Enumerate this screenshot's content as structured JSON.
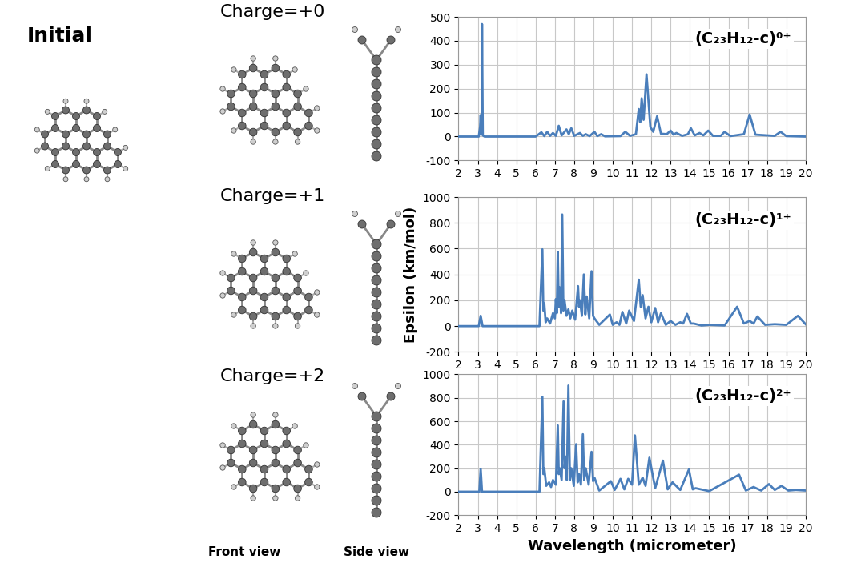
{
  "panels": {
    "initial": "Initial",
    "charges": [
      "Charge=+0",
      "Charge=+1",
      "Charge=+2"
    ],
    "views": [
      "Front view",
      "Side view"
    ]
  },
  "chart_data": [
    {
      "type": "line",
      "annotation": "(C₂₃H₁₂-c)⁰⁺",
      "color": "#4a7ebb",
      "grid": true,
      "xlim": [
        2,
        20
      ],
      "xticks": [
        2,
        3,
        4,
        5,
        6,
        7,
        8,
        9,
        10,
        11,
        12,
        13,
        14,
        15,
        16,
        17,
        18,
        19,
        20
      ],
      "ylim": [
        -100,
        500
      ],
      "yticks": [
        -100,
        0,
        100,
        200,
        300,
        400,
        500
      ],
      "x": [
        2,
        3.05,
        3.12,
        3.15,
        3.18,
        3.2,
        3.22,
        3.26,
        3.35,
        6.0,
        6.3,
        6.45,
        6.6,
        6.75,
        6.9,
        7.05,
        7.2,
        7.35,
        7.6,
        7.72,
        7.85,
        8.0,
        8.3,
        8.45,
        8.6,
        8.8,
        9.05,
        9.2,
        9.4,
        9.6,
        10.4,
        10.65,
        10.9,
        11.2,
        11.35,
        11.42,
        11.5,
        11.6,
        11.75,
        11.95,
        12.1,
        12.3,
        12.5,
        12.8,
        13.0,
        13.15,
        13.3,
        13.6,
        13.9,
        14.05,
        14.25,
        14.5,
        14.7,
        14.95,
        15.2,
        15.6,
        15.8,
        16.1,
        16.8,
        17.1,
        17.4,
        18.4,
        18.7,
        19.0,
        20
      ],
      "values": [
        0,
        0,
        40,
        90,
        10,
        60,
        470,
        5,
        0,
        0,
        18,
        2,
        20,
        3,
        15,
        3,
        45,
        5,
        30,
        10,
        35,
        3,
        15,
        3,
        10,
        2,
        20,
        2,
        10,
        1,
        2,
        20,
        3,
        10,
        115,
        60,
        160,
        70,
        260,
        40,
        20,
        85,
        12,
        10,
        25,
        8,
        15,
        3,
        10,
        35,
        5,
        15,
        5,
        25,
        3,
        3,
        20,
        2,
        10,
        92,
        8,
        3,
        20,
        2,
        0
      ]
    },
    {
      "type": "line",
      "annotation": "(C₂₃H₁₂-c)¹⁺",
      "color": "#4a7ebb",
      "grid": true,
      "ylabel": "Epsilon (km/mol)",
      "xlim": [
        2,
        20
      ],
      "xticks": [
        2,
        3,
        4,
        5,
        6,
        7,
        8,
        9,
        10,
        11,
        12,
        13,
        14,
        15,
        16,
        17,
        18,
        19,
        20
      ],
      "ylim": [
        -200,
        1000
      ],
      "yticks": [
        -200,
        0,
        200,
        400,
        600,
        800,
        1000
      ],
      "x": [
        2,
        3.05,
        3.15,
        3.25,
        6.2,
        6.35,
        6.4,
        6.45,
        6.52,
        6.6,
        6.75,
        6.9,
        7.0,
        7.05,
        7.1,
        7.15,
        7.2,
        7.25,
        7.32,
        7.38,
        7.44,
        7.5,
        7.6,
        7.7,
        7.8,
        7.9,
        8.05,
        8.2,
        8.25,
        8.3,
        8.4,
        8.5,
        8.58,
        8.65,
        8.78,
        8.9,
        8.98,
        9.05,
        9.3,
        9.85,
        10.0,
        10.2,
        10.35,
        10.5,
        10.7,
        10.85,
        11.1,
        11.35,
        11.45,
        11.55,
        11.7,
        11.85,
        12.0,
        12.2,
        12.35,
        12.5,
        12.75,
        13.0,
        13.25,
        13.5,
        13.65,
        13.85,
        14.05,
        14.2,
        14.6,
        15.0,
        15.8,
        16.45,
        16.8,
        17.1,
        17.3,
        17.5,
        17.9,
        18.4,
        19.0,
        19.6,
        20
      ],
      "values": [
        0,
        0,
        80,
        0,
        0,
        595,
        120,
        175,
        30,
        60,
        20,
        100,
        60,
        210,
        100,
        575,
        150,
        300,
        100,
        865,
        120,
        200,
        80,
        130,
        60,
        120,
        50,
        310,
        150,
        200,
        80,
        400,
        90,
        230,
        60,
        425,
        80,
        60,
        10,
        90,
        10,
        30,
        10,
        110,
        20,
        120,
        40,
        360,
        150,
        240,
        60,
        150,
        30,
        140,
        30,
        100,
        10,
        40,
        10,
        30,
        20,
        95,
        20,
        20,
        5,
        10,
        5,
        150,
        20,
        40,
        20,
        75,
        10,
        15,
        10,
        80,
        15
      ]
    },
    {
      "type": "line",
      "annotation": "(C₂₃H₁₂-c)²⁺",
      "color": "#4a7ebb",
      "grid": true,
      "xlabel": "Wavelength (micrometer)",
      "xlim": [
        2,
        20
      ],
      "xticks": [
        2,
        3,
        4,
        5,
        6,
        7,
        8,
        9,
        10,
        11,
        12,
        13,
        14,
        15,
        16,
        17,
        18,
        19,
        20
      ],
      "ylim": [
        -200,
        1000
      ],
      "yticks": [
        -200,
        0,
        200,
        400,
        600,
        800,
        1000
      ],
      "x": [
        2,
        3.08,
        3.15,
        3.22,
        6.2,
        6.35,
        6.4,
        6.45,
        6.55,
        6.7,
        6.8,
        6.9,
        7.05,
        7.15,
        7.2,
        7.25,
        7.35,
        7.45,
        7.5,
        7.55,
        7.62,
        7.7,
        7.78,
        7.85,
        7.98,
        8.1,
        8.18,
        8.25,
        8.35,
        8.45,
        8.52,
        8.6,
        8.75,
        8.9,
        8.98,
        9.05,
        9.3,
        9.9,
        10.1,
        10.4,
        10.6,
        10.8,
        11.0,
        11.15,
        11.35,
        11.55,
        11.7,
        11.9,
        12.2,
        12.6,
        12.85,
        13.1,
        13.5,
        13.95,
        14.15,
        14.3,
        15.0,
        16.55,
        16.9,
        17.3,
        17.7,
        18.1,
        18.4,
        18.75,
        19.1,
        19.5,
        20
      ],
      "values": [
        0,
        0,
        195,
        0,
        0,
        810,
        150,
        200,
        50,
        80,
        40,
        100,
        60,
        565,
        150,
        200,
        100,
        770,
        200,
        300,
        100,
        905,
        100,
        200,
        50,
        405,
        80,
        150,
        60,
        490,
        100,
        200,
        60,
        340,
        90,
        120,
        10,
        90,
        15,
        110,
        20,
        110,
        60,
        480,
        60,
        120,
        50,
        290,
        30,
        265,
        20,
        80,
        15,
        190,
        20,
        30,
        5,
        145,
        10,
        40,
        10,
        65,
        15,
        50,
        10,
        15,
        10
      ]
    }
  ]
}
